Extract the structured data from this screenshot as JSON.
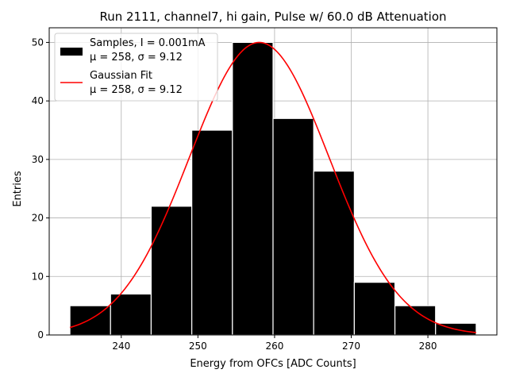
{
  "chart_data": {
    "type": "bar",
    "title": "Run 2111, channel7, hi gain, Pulse w/ 60.0 dB Attenuation",
    "xlabel": "Energy from OFCs [ADC Counts]",
    "ylabel": "Entries",
    "xlim": [
      230.6,
      289.0
    ],
    "ylim": [
      0,
      52.5
    ],
    "xticks": [
      240,
      250,
      260,
      270,
      280
    ],
    "yticks": [
      0,
      10,
      20,
      30,
      40,
      50
    ],
    "grid": true,
    "legend_position": "top-left",
    "histogram": {
      "name": "Samples, I = 0.001mA",
      "stats_label": "μ = 258, σ = 9.12",
      "color": "#000000",
      "edge_color": "#ffffff",
      "bins": [
        {
          "x0": 233.3,
          "x1": 238.6,
          "count": 5
        },
        {
          "x0": 238.6,
          "x1": 243.9,
          "count": 7
        },
        {
          "x0": 243.9,
          "x1": 249.2,
          "count": 22
        },
        {
          "x0": 249.2,
          "x1": 254.5,
          "count": 35
        },
        {
          "x0": 254.5,
          "x1": 259.8,
          "count": 50
        },
        {
          "x0": 259.8,
          "x1": 265.1,
          "count": 37
        },
        {
          "x0": 265.1,
          "x1": 270.4,
          "count": 28
        },
        {
          "x0": 270.4,
          "x1": 275.7,
          "count": 9
        },
        {
          "x0": 275.7,
          "x1": 281.0,
          "count": 5
        },
        {
          "x0": 281.0,
          "x1": 286.3,
          "count": 2
        }
      ]
    },
    "fit": {
      "name": "Gaussian Fit",
      "stats_label": "μ = 258, σ = 9.12",
      "color": "#ff0000",
      "mu": 258,
      "sigma": 9.12,
      "amplitude": 50,
      "x_range": [
        233.3,
        286.3
      ]
    }
  }
}
